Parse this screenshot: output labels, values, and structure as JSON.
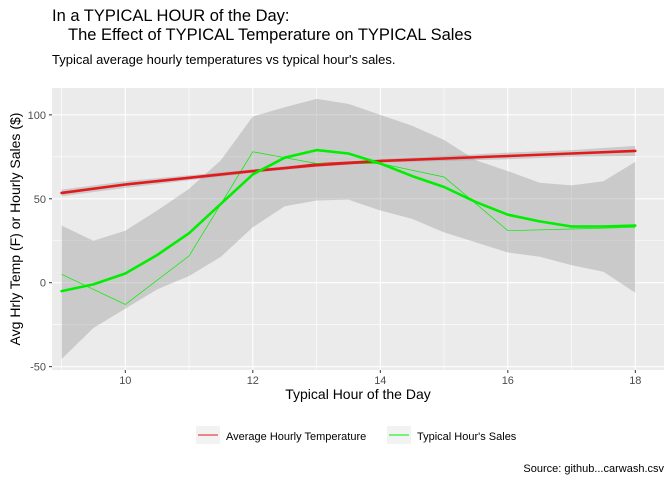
{
  "chart_data": {
    "type": "line",
    "title_line1": "In a TYPICAL HOUR of the Day:",
    "title_line2": "The Effect of TYPICAL Temperature on TYPICAL Sales",
    "subtitle": "Typical average hourly temperatures vs typical hour's sales.",
    "xlabel": "Typical Hour of the Day",
    "ylabel": "Avg Hrly Temp (F) or Hourly Sales ($)",
    "caption": "Source: github...carwash.csv",
    "xlim": [
      8.85,
      18.45
    ],
    "ylim": [
      -52,
      116
    ],
    "xticks": [
      10,
      12,
      14,
      16,
      18
    ],
    "yticks": [
      -50,
      0,
      50,
      100
    ],
    "grid": true,
    "legend_position": "bottom",
    "series": [
      {
        "name": "Average Hourly Temperature",
        "color": "#e31a1c",
        "raw_values": {
          "x": [
            9,
            10,
            11,
            12,
            13,
            14,
            15,
            16,
            17,
            18
          ],
          "y": [
            53,
            58.5,
            63,
            66.5,
            71,
            73,
            74,
            75,
            77,
            79
          ]
        },
        "smooth": {
          "x": [
            9,
            10,
            11,
            12,
            13,
            14,
            15,
            16,
            17,
            18
          ],
          "y": [
            53.5,
            58.5,
            62.5,
            66.5,
            70,
            72.5,
            74,
            75.5,
            77,
            78.5
          ],
          "lower": [
            51.5,
            56.5,
            61,
            65.5,
            69,
            71.5,
            72.5,
            73.5,
            75,
            75.5
          ],
          "upper": [
            55.5,
            60.5,
            64,
            67.5,
            71,
            73.5,
            75.5,
            77.5,
            79,
            81.5
          ]
        }
      },
      {
        "name": "Typical Hour's Sales",
        "color": "#00ee00",
        "raw_values": {
          "x": [
            9,
            10,
            11,
            12,
            13,
            14,
            15,
            16,
            17,
            18
          ],
          "y": [
            5,
            -13,
            16,
            78,
            71,
            71,
            63,
            31,
            32,
            33
          ]
        },
        "smooth": {
          "x": [
            9,
            9.5,
            10,
            10.5,
            11,
            11.5,
            12,
            12.5,
            13,
            13.5,
            14,
            14.5,
            15,
            15.5,
            16,
            16.5,
            17,
            17.5,
            18
          ],
          "y": [
            -5,
            -1,
            5.5,
            16.5,
            29.5,
            47,
            64.5,
            74.5,
            79,
            77,
            71,
            63.5,
            57,
            48,
            40.5,
            36.5,
            33.5,
            33.5,
            34
          ],
          "lower": [
            -45.5,
            -27,
            -15.5,
            -4,
            4,
            15.5,
            33,
            45.5,
            49,
            49.5,
            43,
            38,
            30,
            24,
            18,
            15.5,
            10.5,
            6.5,
            -6
          ],
          "upper": [
            34,
            25,
            31,
            43,
            56,
            73,
            99,
            104.5,
            109.5,
            106.5,
            100,
            93.5,
            85,
            73,
            66.5,
            59.5,
            58,
            60.5,
            72
          ]
        }
      }
    ]
  }
}
